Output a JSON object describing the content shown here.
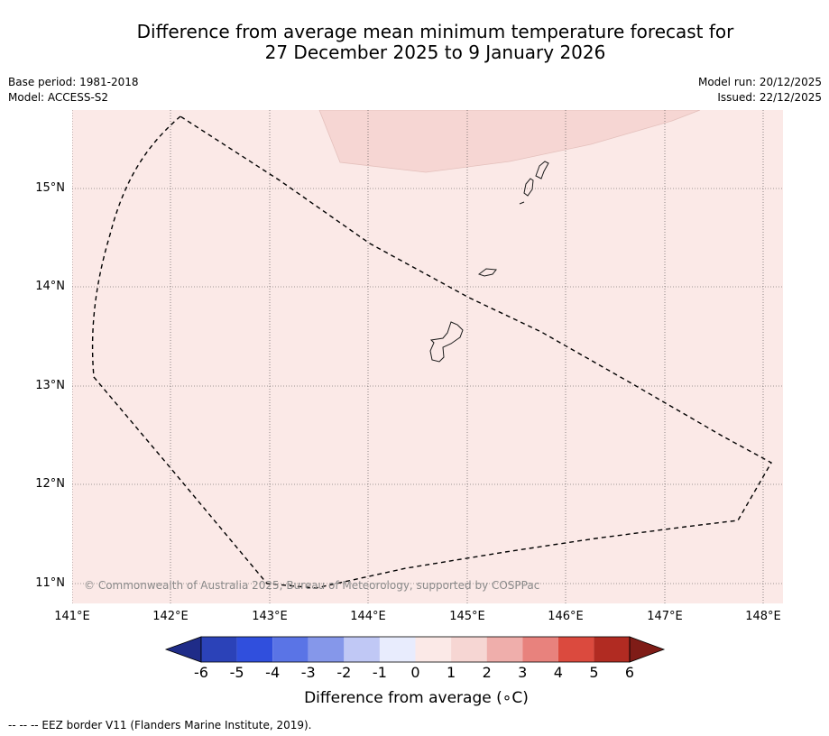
{
  "header": {
    "title_line1": "Difference from average mean minimum temperature forecast for",
    "title_line2": "27 December 2025 to 9 January 2026",
    "base_period": "Base period: 1981-2018",
    "model": "Model: ACCESS-S2",
    "model_run": "Model run: 20/12/2025",
    "issued": "Issued: 22/12/2025"
  },
  "map": {
    "background_color": "#fbe9e7",
    "anomaly_patch_color": "#f6d6d3",
    "eez_line_color": "#000000",
    "lat_labels": [
      "15°N",
      "14°N",
      "13°N",
      "12°N",
      "11°N"
    ],
    "lon_labels": [
      "141°E",
      "142°E",
      "143°E",
      "144°E",
      "145°E",
      "146°E",
      "147°E",
      "148°E"
    ],
    "copyright": "© Commonwealth of Australia 2025, Bureau of Meteorology, supported by COSPPac"
  },
  "colorbar": {
    "colors": [
      "#1f2c88",
      "#2b42b8",
      "#304fdd",
      "#5a74e6",
      "#8597ea",
      "#c0c8f5",
      "#e8ecfd",
      "#fbe9e7",
      "#f6d6d3",
      "#efaeab",
      "#e8827d",
      "#db4a3e",
      "#b12b22",
      "#7f1c17"
    ],
    "labels": [
      "-6",
      "-5",
      "-4",
      "-3",
      "-2",
      "-1",
      "0",
      "1",
      "2",
      "3",
      "4",
      "5",
      "6"
    ],
    "title": "Difference from average (∘C)"
  },
  "footer": "--  --  -- EEZ border V11 (Flanders Marine Institute, 2019)."
}
